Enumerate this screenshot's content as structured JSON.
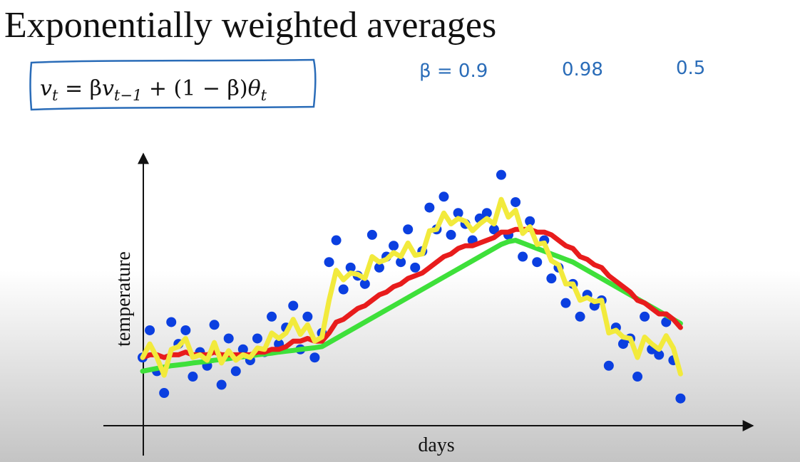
{
  "title": "Exponentially weighted averages",
  "formula": [
    "v",
    "t",
    " = β",
    "v",
    "t−1",
    " + (1 − β)",
    "θ",
    "t"
  ],
  "annotations": [
    "β = 0.9",
    "0.98",
    "0.5"
  ],
  "chart_data": {
    "type": "scatter",
    "x_label": "days",
    "y_label": "temperature",
    "xlim": [
      0,
      85
    ],
    "ylim": [
      0,
      100
    ],
    "x": [
      0,
      1,
      2,
      3,
      4,
      5,
      6,
      7,
      8,
      9,
      10,
      11,
      12,
      13,
      14,
      15,
      16,
      17,
      18,
      19,
      20,
      21,
      22,
      23,
      24,
      25,
      26,
      27,
      28,
      29,
      30,
      31,
      32,
      33,
      34,
      35,
      36,
      37,
      38,
      39,
      40,
      41,
      42,
      43,
      44,
      45,
      46,
      47,
      48,
      49,
      50,
      51,
      52,
      53,
      54,
      55,
      56,
      57,
      58,
      59,
      60,
      61,
      62,
      63,
      64,
      65,
      66,
      67,
      68,
      69,
      70,
      71,
      72,
      73,
      74,
      75
    ],
    "series": [
      {
        "type": "scatter",
        "color": "#0b3fe0",
        "values": [
          25,
          35,
          20,
          12,
          38,
          30,
          35,
          18,
          27,
          22,
          37,
          15,
          32,
          20,
          28,
          24,
          32,
          27,
          40,
          30,
          36,
          44,
          28,
          40,
          25,
          34,
          60,
          68,
          50,
          58,
          55,
          52,
          70,
          58,
          62,
          66,
          60,
          72,
          58,
          64,
          80,
          72,
          84,
          70,
          78,
          74,
          68,
          76,
          78,
          72,
          92,
          70,
          82,
          62,
          75,
          60,
          68,
          54,
          58,
          45,
          52,
          40,
          48,
          44,
          46,
          22,
          36,
          30,
          32,
          18,
          40,
          28,
          26,
          38,
          24,
          10
        ]
      },
      {
        "type": "line",
        "color": "#3ee03a",
        "values": [
          20,
          20.5,
          21,
          21.5,
          22,
          22.3,
          22.6,
          23,
          23.3,
          23.6,
          24,
          24.3,
          24.6,
          25,
          25.3,
          25.6,
          26,
          26.3,
          26.6,
          27,
          27.3,
          27.6,
          28,
          28.3,
          28.6,
          29,
          30.5,
          32,
          33.5,
          35,
          36.5,
          38,
          39.5,
          41,
          42.5,
          44,
          45.5,
          47,
          48.5,
          50,
          51.5,
          53,
          54.5,
          56,
          57.5,
          59,
          60.5,
          62,
          63.5,
          65,
          66.5,
          67.5,
          68,
          67,
          66,
          65,
          64,
          63,
          62,
          61,
          60,
          58.5,
          57,
          55.5,
          54,
          52.5,
          51,
          49.5,
          48,
          46.5,
          45,
          43.5,
          42,
          40.5,
          39,
          37.5
        ]
      },
      {
        "type": "line",
        "color": "#e81c1c",
        "values": [
          25,
          26,
          26,
          25,
          26,
          26,
          27,
          26,
          26,
          26,
          27,
          26,
          26,
          26,
          26,
          26,
          27,
          27,
          28,
          28,
          29,
          31,
          31,
          32,
          31,
          31,
          34,
          38,
          39,
          41,
          43,
          44,
          46,
          48,
          49,
          51,
          52,
          54,
          55,
          56,
          58,
          60,
          62,
          63,
          65,
          66,
          66,
          67,
          68,
          69,
          71,
          71,
          72,
          72,
          72,
          71,
          71,
          70,
          68,
          66,
          65,
          62,
          61,
          59,
          58,
          55,
          53,
          51,
          49,
          46,
          45,
          43,
          41,
          41,
          39,
          36
        ]
      },
      {
        "type": "line",
        "color": "#f2ea3c",
        "values": [
          25,
          30,
          25,
          18.5,
          28,
          29,
          32,
          25,
          26,
          24,
          30.5,
          23,
          27.5,
          24,
          26,
          25,
          28.5,
          28,
          34,
          32,
          34,
          39,
          33.5,
          37,
          31,
          32.5,
          46,
          57,
          53.5,
          56,
          55.5,
          54,
          62,
          60,
          61,
          63.5,
          62,
          67,
          62.5,
          63,
          71.5,
          72,
          78,
          74,
          76,
          75,
          71.5,
          74,
          76,
          74,
          83,
          76.5,
          79,
          70.5,
          73,
          66.5,
          67,
          60.5,
          59,
          52,
          52,
          46,
          47,
          45.5,
          46,
          34,
          35,
          32.5,
          32,
          25,
          32.5,
          30,
          28,
          33,
          28.5,
          19
        ]
      }
    ]
  }
}
